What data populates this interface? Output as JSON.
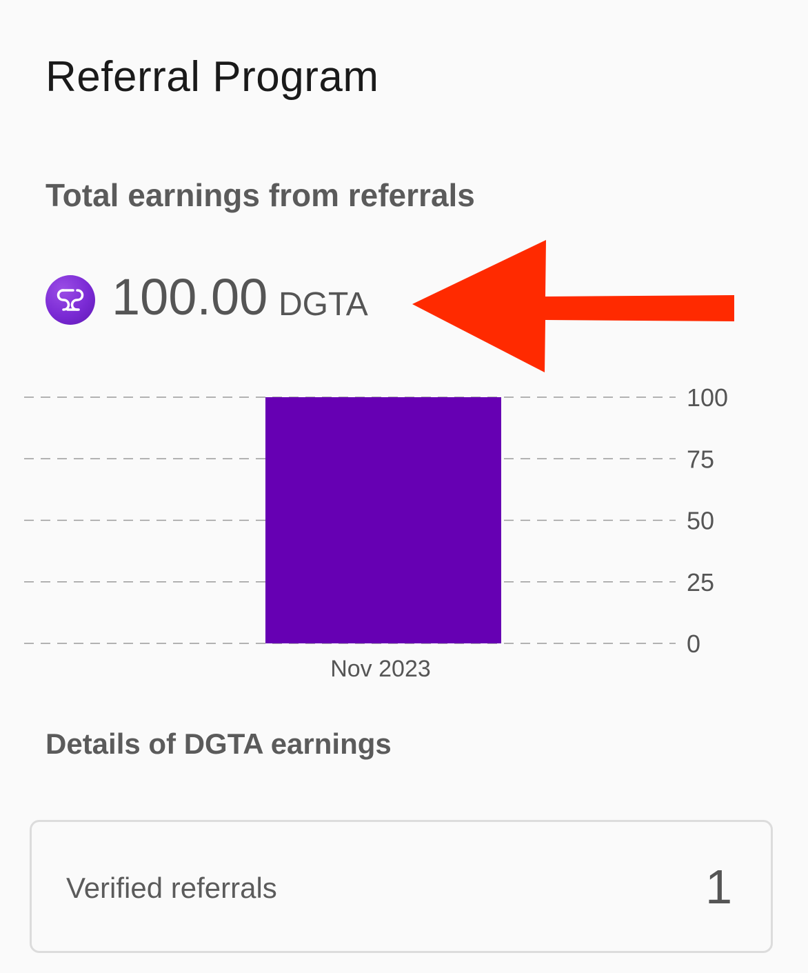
{
  "header": {
    "title": "Referral Program"
  },
  "earnings": {
    "section_title": "Total earnings from referrals",
    "token_icon": "dgta-coin-icon",
    "amount": "100.00",
    "unit": "DGTA"
  },
  "annotation": {
    "arrow_color": "#ff2a00"
  },
  "chart_data": {
    "type": "bar",
    "categories": [
      "Nov 2023"
    ],
    "values": [
      100
    ],
    "ylim": [
      0,
      100
    ],
    "yticks": [
      "0",
      "25",
      "50",
      "75",
      "100"
    ],
    "bar_color": "#6600b3",
    "grid": "dashed horizontal",
    "y_axis_side": "right"
  },
  "details": {
    "title": "Details of DGTA earnings",
    "rows": [
      {
        "label": "Verified referrals",
        "value": "1"
      }
    ]
  }
}
